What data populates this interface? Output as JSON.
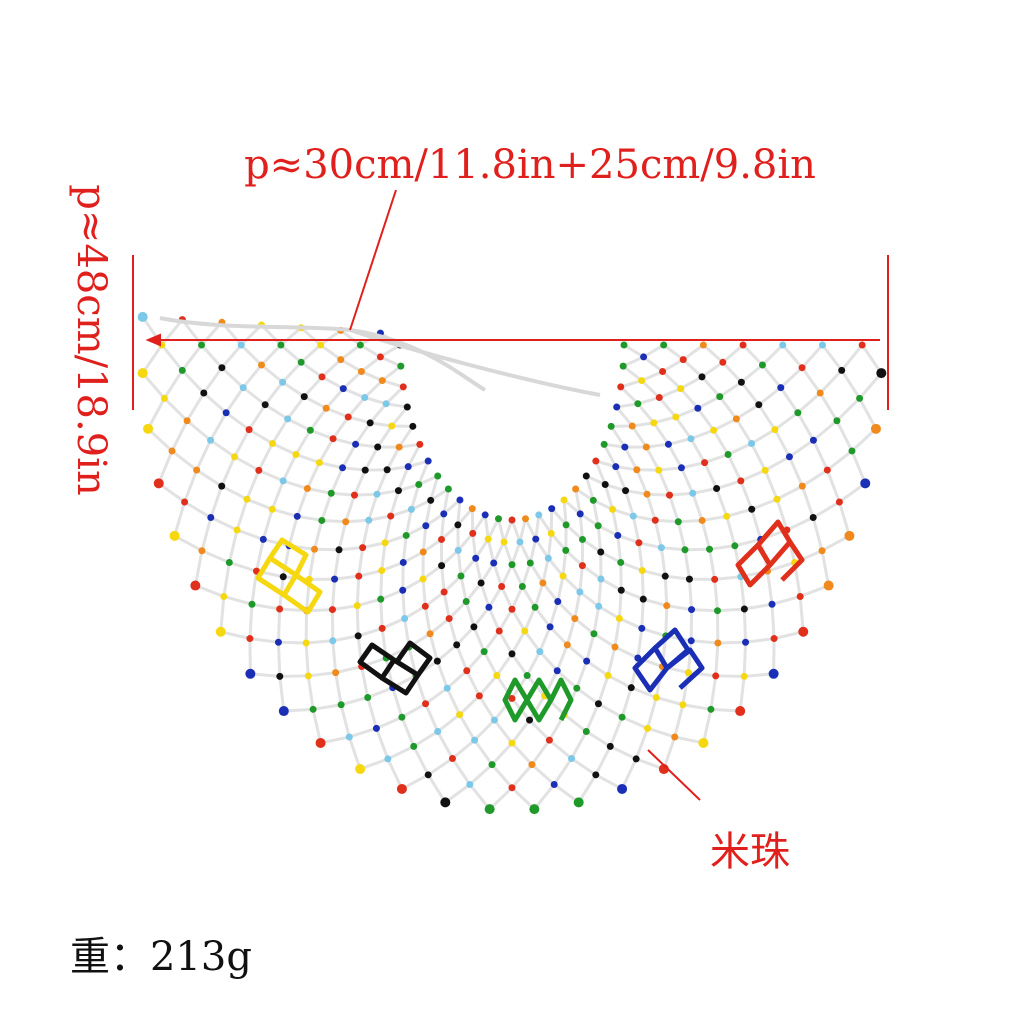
{
  "annotations": {
    "width": "p≈30cm/11.8in+25cm/9.8in",
    "height": "p≈48cm/18.9in",
    "bead_label": "米珠",
    "weight": "重：213g"
  }
}
